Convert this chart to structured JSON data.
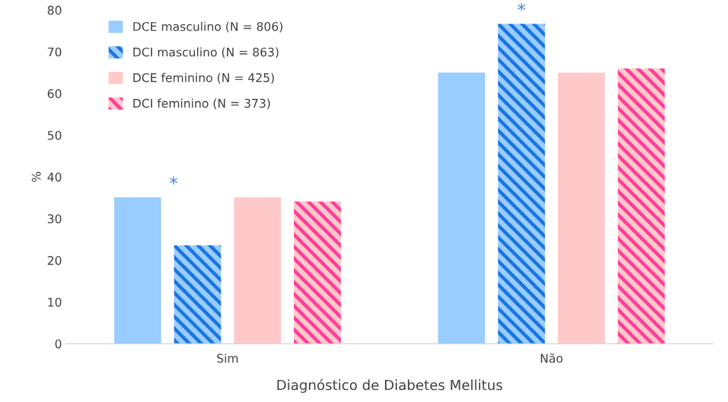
{
  "chart_data": {
    "type": "bar",
    "xlabel": "Diagnóstico de Diabetes Mellitus",
    "ylabel": "%",
    "categories": [
      "Sim",
      "Não"
    ],
    "series": [
      {
        "name": "DCE masculino (N = 806)",
        "color": "#99ccff",
        "values": [
          35.1,
          65.0
        ]
      },
      {
        "name": "DCI masculino (N = 863)",
        "color": "#1a75e0",
        "values": [
          23.6,
          76.7
        ]
      },
      {
        "name": "DCE feminino (N = 425)",
        "color": "#ffc9c9",
        "values": [
          35.1,
          65.0
        ]
      },
      {
        "name": "DCI feminino (N = 373)",
        "color": "#ff3d9a",
        "values": [
          34.1,
          66.0
        ]
      }
    ],
    "ylim": [
      0,
      80
    ],
    "yticks": [
      0,
      10,
      20,
      30,
      40,
      50,
      60,
      70,
      80
    ],
    "annotations": [
      "*",
      "*"
    ],
    "grid": false,
    "legend": "top left"
  }
}
